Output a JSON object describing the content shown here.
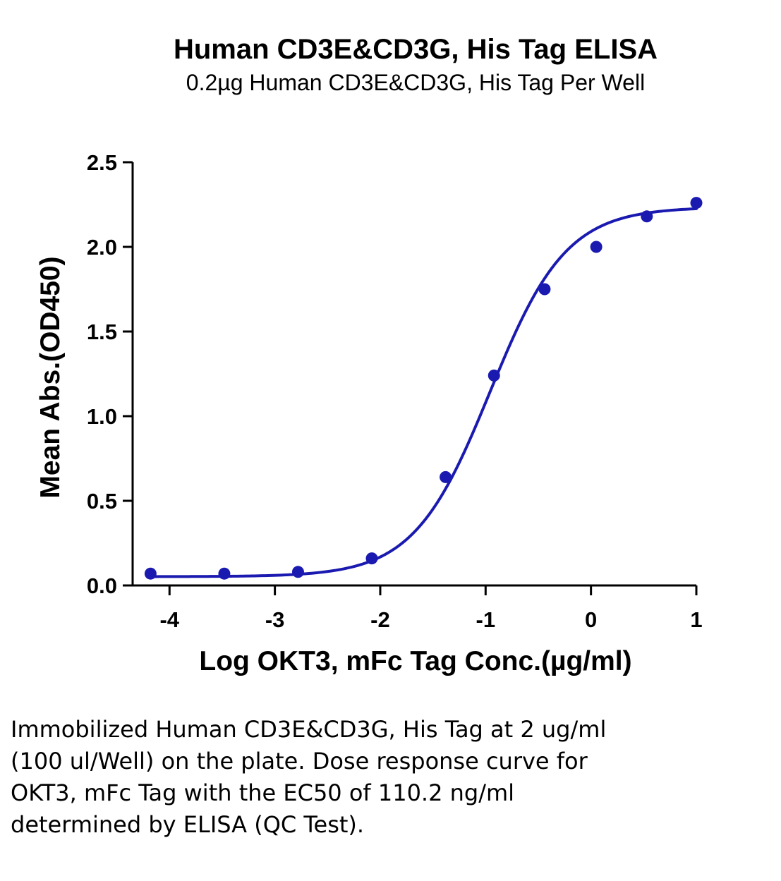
{
  "chart_data": {
    "type": "scatter",
    "title": "Human CD3E&CD3G, His Tag ELISA",
    "subtitle": "0.2µg Human CD3E&CD3G, His Tag Per Well",
    "xlabel": "Log OKT3, mFc Tag Conc.(µg/ml)",
    "ylabel": "Mean Abs.(OD450)",
    "xlim": [
      -4.35,
      1.0
    ],
    "ylim": [
      0,
      2.5
    ],
    "x_ticks": [
      -4,
      -3,
      -2,
      -1,
      0,
      1
    ],
    "x_tick_labels": [
      "-4",
      "-3",
      "-2",
      "-1",
      "0",
      "1"
    ],
    "y_ticks": [
      0.0,
      0.5,
      1.0,
      1.5,
      2.0,
      2.5
    ],
    "y_tick_labels": [
      "0.0",
      "0.5",
      "1.0",
      "1.5",
      "2.0",
      "2.5"
    ],
    "grid": false,
    "series_color": "#1a1ab0",
    "series": [
      {
        "x": [
          -4.18,
          -3.48,
          -2.78,
          -2.08,
          -1.38,
          -0.92,
          -0.44,
          0.05,
          0.53,
          1.0
        ],
        "y": [
          0.07,
          0.07,
          0.08,
          0.16,
          0.64,
          1.24,
          1.75,
          2.0,
          2.18,
          2.26
        ]
      }
    ],
    "fit_curve": {
      "model": "4PL",
      "bottom": 0.052,
      "top": 2.235,
      "log_ec50": -0.958,
      "hill_slope": 1.2
    }
  },
  "caption": "Immobilized Human CD3E&CD3G, His Tag at 2 ug/ml (100 ul/Well) on the plate. Dose response curve for OKT3, mFc Tag with the EC50 of 110.2 ng/ml determined by ELISA (QC Test)."
}
